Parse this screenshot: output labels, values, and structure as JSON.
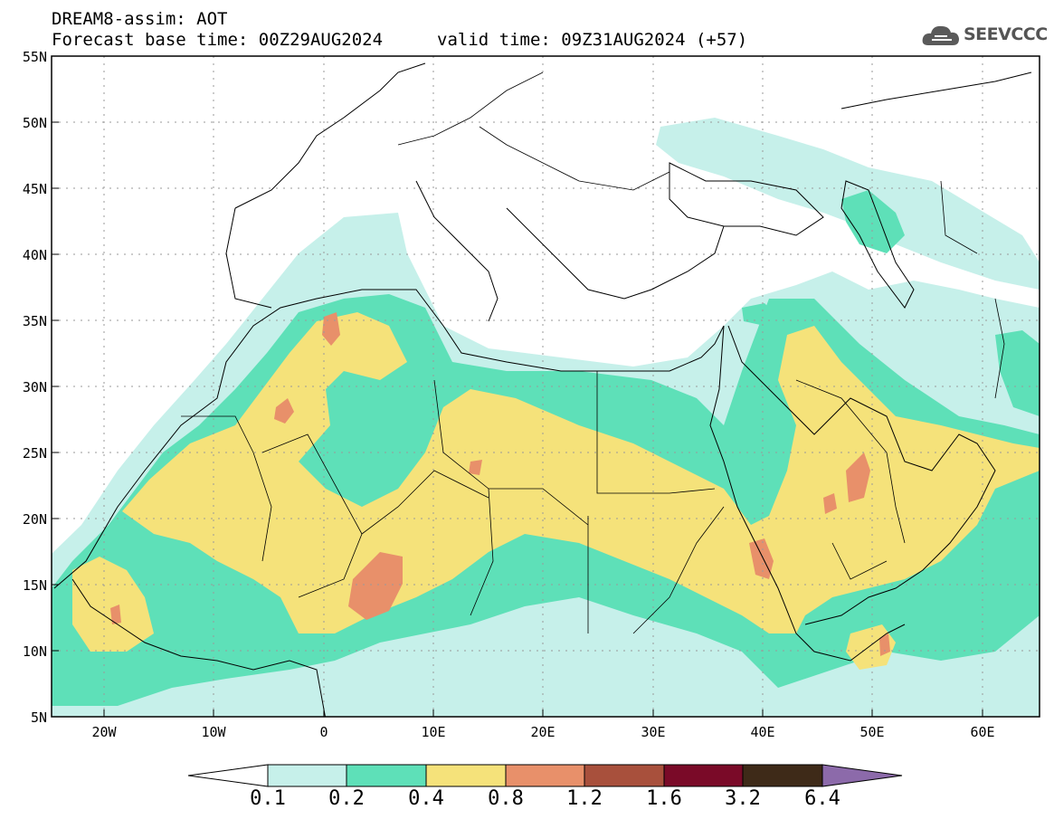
{
  "header": {
    "line1": "DREAM8-assim: AOT",
    "line2a": "Forecast base time: 00Z29AUG2024",
    "line2b": "valid time: 09Z31AUG2024 (+57)",
    "logo_text": "SEEVCCC",
    "logo_icon": "cloud-icon"
  },
  "axes": {
    "lat_labels": [
      "55N",
      "50N",
      "45N",
      "40N",
      "35N",
      "30N",
      "25N",
      "20N",
      "15N",
      "10N",
      "5N"
    ],
    "lon_labels": [
      "20W",
      "10W",
      "0",
      "10E",
      "20E",
      "30E",
      "40E",
      "50E",
      "60E"
    ]
  },
  "colorbar": {
    "levels": [
      "0.1",
      "0.2",
      "0.4",
      "0.8",
      "1.2",
      "1.6",
      "3.2",
      "6.4"
    ],
    "colors": [
      "#c6f0ea",
      "#5ee0b8",
      "#f5e27a",
      "#e8906a",
      "#a8503c",
      "#7a0a28",
      "#3e2a18",
      "#8c6aaa"
    ]
  },
  "colors": {
    "c1": "#c6f0ea",
    "c2": "#5ee0b8",
    "c3": "#f5e27a",
    "c4": "#e8906a"
  }
}
